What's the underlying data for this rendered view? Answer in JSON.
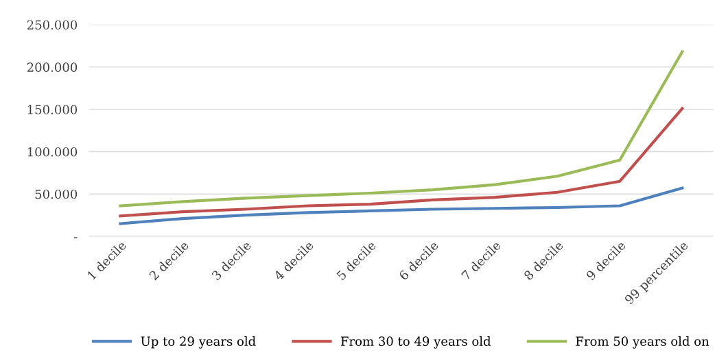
{
  "chart_data": {
    "type": "line",
    "categories": [
      "1 decile",
      "2 decile",
      "3 decile",
      "4 decile",
      "5 decile",
      "6 decile",
      "7 decile",
      "8 decile",
      "9 decile",
      "99 percentile"
    ],
    "series": [
      {
        "name": "Up to 29 years old",
        "color": "#4f81bd",
        "values": [
          15000,
          21000,
          25000,
          28000,
          30000,
          32000,
          33000,
          34000,
          36000,
          57000
        ]
      },
      {
        "name": "From 30 to 49 years old",
        "color": "#c0504d",
        "values": [
          24000,
          29000,
          32000,
          36000,
          38000,
          43000,
          46000,
          52000,
          65000,
          151000
        ]
      },
      {
        "name": "From 50 years old on",
        "color": "#9bbb59",
        "values": [
          36000,
          41000,
          45000,
          48000,
          51000,
          55000,
          61000,
          71000,
          90000,
          218000
        ]
      }
    ],
    "ylim": [
      0,
      250000
    ],
    "yticks": [
      {
        "value": 0,
        "label": "-"
      },
      {
        "value": 50000,
        "label": "50.000"
      },
      {
        "value": 100000,
        "label": "100.000"
      },
      {
        "value": 150000,
        "label": "150.000"
      },
      {
        "value": 200000,
        "label": "200.000"
      },
      {
        "value": 250000,
        "label": "250.000"
      }
    ],
    "grid": "y",
    "legend": "bottom",
    "marker": "none",
    "line_style": "solid"
  }
}
